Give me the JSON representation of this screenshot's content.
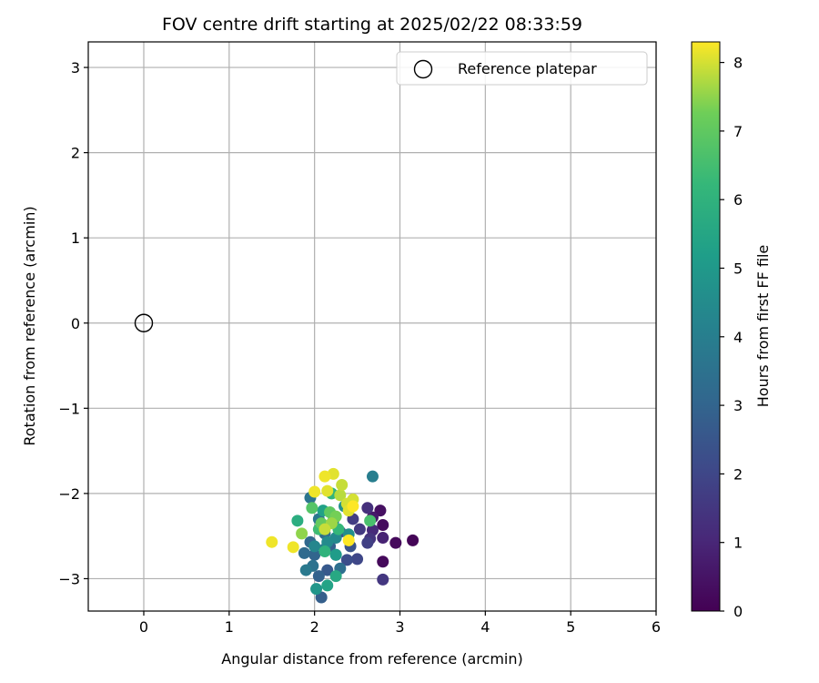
{
  "chart_data": {
    "type": "scatter",
    "title": "FOV centre drift starting at 2025/02/22 08:33:59",
    "xlabel": "Angular distance from reference (arcmin)",
    "ylabel": "Rotation from reference (arcmin)",
    "xlim": [
      -0.65,
      6.0
    ],
    "ylim": [
      -3.38,
      3.3
    ],
    "xticks": [
      0,
      1,
      2,
      3,
      4,
      5,
      6
    ],
    "xtick_labels": [
      "0",
      "1",
      "2",
      "3",
      "4",
      "5",
      "6"
    ],
    "yticks": [
      3,
      2,
      1,
      0,
      -1,
      -2,
      -3
    ],
    "ytick_labels": [
      "3",
      "2",
      "1",
      "0",
      "−1",
      "−2",
      "−3"
    ],
    "grid": true,
    "legend": {
      "placement": "upper right",
      "entries": [
        {
          "label": "Reference platepar",
          "marker": "open-circle",
          "color": "#000000"
        }
      ]
    },
    "reference_point": {
      "x": 0.0,
      "y": 0.0
    },
    "colorbar": {
      "label": "Hours from first FF file",
      "range": [
        0,
        8.3
      ],
      "ticks": [
        0,
        1,
        2,
        3,
        4,
        5,
        6,
        7,
        8
      ],
      "tick_labels": [
        "0",
        "1",
        "2",
        "3",
        "4",
        "5",
        "6",
        "7",
        "8"
      ],
      "colormap": "viridis"
    },
    "series": [
      {
        "points": [
          [
            3.15,
            -2.55,
            0.1
          ],
          [
            2.95,
            -2.58,
            0.2
          ],
          [
            2.8,
            -2.8,
            0.2
          ],
          [
            2.8,
            -2.37,
            0.3
          ],
          [
            2.77,
            -2.2,
            0.4
          ],
          [
            2.68,
            -2.28,
            0.6
          ],
          [
            2.8,
            -2.52,
            0.9
          ],
          [
            2.68,
            -2.43,
            1.1
          ],
          [
            2.62,
            -2.17,
            1.3
          ],
          [
            2.65,
            -2.53,
            1.4
          ],
          [
            2.8,
            -3.01,
            1.5
          ],
          [
            2.53,
            -2.42,
            1.6
          ],
          [
            2.45,
            -2.3,
            1.7
          ],
          [
            2.62,
            -2.58,
            1.8
          ],
          [
            2.5,
            -2.77,
            2.0
          ],
          [
            2.38,
            -2.78,
            2.2
          ],
          [
            2.3,
            -2.45,
            2.2
          ],
          [
            2.42,
            -2.62,
            2.4
          ],
          [
            2.25,
            -2.72,
            2.5
          ],
          [
            2.15,
            -2.9,
            2.6
          ],
          [
            2.08,
            -3.22,
            2.8
          ],
          [
            2.05,
            -2.97,
            2.9
          ],
          [
            2.18,
            -2.62,
            2.9
          ],
          [
            2.0,
            -2.72,
            3.0
          ],
          [
            1.95,
            -2.57,
            3.1
          ],
          [
            1.88,
            -2.7,
            3.2
          ],
          [
            2.12,
            -2.47,
            3.3
          ],
          [
            2.3,
            -2.88,
            3.4
          ],
          [
            1.98,
            -2.85,
            3.5
          ],
          [
            1.95,
            -2.05,
            3.6
          ],
          [
            2.05,
            -2.3,
            3.7
          ],
          [
            1.9,
            -2.9,
            3.8
          ],
          [
            2.12,
            -2.65,
            3.9
          ],
          [
            2.68,
            -1.8,
            4.0
          ],
          [
            2.22,
            -2.32,
            4.1
          ],
          [
            2.0,
            -2.62,
            4.3
          ],
          [
            2.25,
            -2.52,
            4.4
          ],
          [
            2.15,
            -2.57,
            4.5
          ],
          [
            2.4,
            -2.48,
            4.6
          ],
          [
            2.35,
            -2.15,
            4.7
          ],
          [
            2.02,
            -3.12,
            4.9
          ],
          [
            2.1,
            -2.38,
            5.0
          ],
          [
            2.25,
            -2.72,
            5.1
          ],
          [
            2.1,
            -2.2,
            5.3
          ],
          [
            2.15,
            -3.08,
            5.4
          ],
          [
            2.25,
            -2.97,
            5.6
          ],
          [
            1.8,
            -2.32,
            5.8
          ],
          [
            2.12,
            -2.68,
            6.0
          ],
          [
            2.2,
            -2.0,
            6.1
          ],
          [
            2.28,
            -2.42,
            6.2
          ],
          [
            2.05,
            -2.42,
            6.4
          ],
          [
            2.65,
            -2.32,
            6.6
          ],
          [
            1.97,
            -2.17,
            6.8
          ],
          [
            2.18,
            -2.22,
            7.0
          ],
          [
            2.08,
            -2.35,
            7.1
          ],
          [
            2.25,
            -2.27,
            7.3
          ],
          [
            1.85,
            -2.47,
            7.5
          ],
          [
            2.2,
            -2.35,
            7.6
          ],
          [
            2.3,
            -2.02,
            7.8
          ],
          [
            2.32,
            -1.9,
            7.9
          ],
          [
            2.12,
            -2.42,
            7.9
          ],
          [
            2.38,
            -2.12,
            8.0
          ],
          [
            2.45,
            -2.07,
            8.0
          ],
          [
            2.4,
            -2.2,
            8.1
          ],
          [
            2.22,
            -1.77,
            8.1
          ],
          [
            2.15,
            -1.97,
            8.1
          ],
          [
            2.12,
            -1.8,
            8.2
          ],
          [
            2.0,
            -1.98,
            8.2
          ],
          [
            1.5,
            -2.57,
            8.2
          ],
          [
            1.75,
            -2.63,
            8.2
          ],
          [
            2.4,
            -2.55,
            8.3
          ],
          [
            2.45,
            -2.15,
            8.3
          ]
        ]
      }
    ]
  }
}
